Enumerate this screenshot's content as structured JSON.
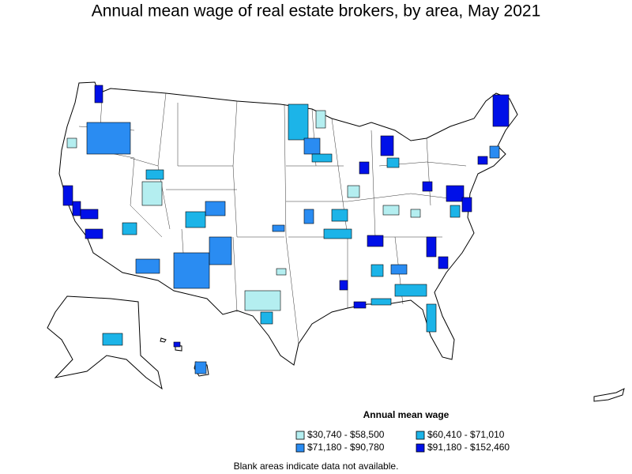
{
  "title": "Annual mean wage of real estate brokers, by area, May 2021",
  "legend": {
    "title": "Annual mean wage",
    "items": [
      {
        "label": "$30,740 - $58,500",
        "color": "#b4eef0"
      },
      {
        "label": "$60,410 - $71,010",
        "color": "#1cb4e8"
      },
      {
        "label": "$71,180 - $90,780",
        "color": "#2a8cf2"
      },
      {
        "label": "$91,180 - $152,460",
        "color": "#0010e8"
      }
    ]
  },
  "footnote": "Blank areas indicate data not available."
}
